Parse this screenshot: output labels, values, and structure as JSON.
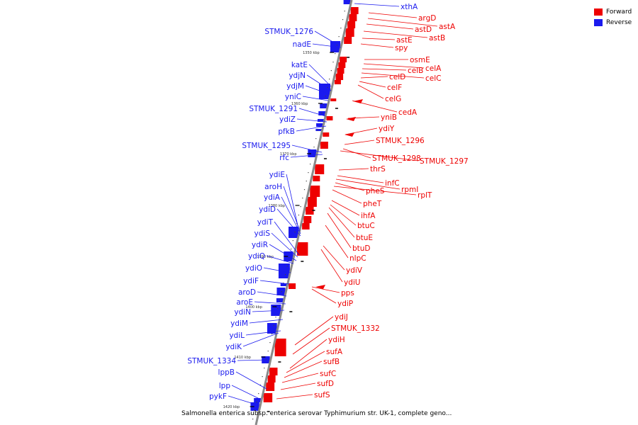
{
  "legend": [
    {
      "label": "Forward",
      "color": "#ee0000"
    },
    {
      "label": "Reverse",
      "color": "#1a1aee"
    }
  ],
  "caption": "Salmonella enterica subsp. enterica serovar Typhimurium str. UK-1, complete geno...",
  "colors": {
    "forward": "#ee0000",
    "reverse": "#1a1aee",
    "backbone": "#8a8a8a"
  },
  "ticks": [
    "1350 kbp",
    "1360 kbp",
    "1370 kbp",
    "1380 kbp",
    "1390 kbp",
    "1400 kbp",
    "1410 kbp",
    "1420 kbp"
  ],
  "reverse_genes": [
    "xthA",
    "STMUK_1276",
    "nadE",
    "katE",
    "ydjN",
    "ydjM",
    "yniC",
    "STMUK_1291",
    "ydiZ",
    "pfkB",
    "STMUK_1295",
    "rfc",
    "ydiE",
    "aroH",
    "ydiA",
    "ydiD",
    "ydiT",
    "ydiS",
    "ydiR",
    "ydiQ",
    "ydiO",
    "ydiF",
    "aroD",
    "aroE",
    "ydiN",
    "ydiM",
    "ydiL",
    "ydiK",
    "STMUK_1334",
    "lppB",
    "lpp",
    "pykF"
  ],
  "forward_genes": [
    "argD",
    "astA",
    "astD",
    "astB",
    "astE",
    "spy",
    "osmE",
    "celA",
    "celB",
    "celC",
    "celD",
    "celF",
    "celG",
    "cedA",
    "yniB",
    "ydiY",
    "STMUK_1296",
    "STMUK_1298",
    "STMUK_1297",
    "thrS",
    "infC",
    "rpmI",
    "pheS",
    "rplT",
    "pheT",
    "ihfA",
    "btuC",
    "btuE",
    "btuD",
    "nlpC",
    "ydiV",
    "ydiU",
    "pps",
    "ydiP",
    "ydiJ",
    "STMUK_1332",
    "ydiH",
    "sufA",
    "sufB",
    "sufC",
    "sufD",
    "sufS"
  ]
}
